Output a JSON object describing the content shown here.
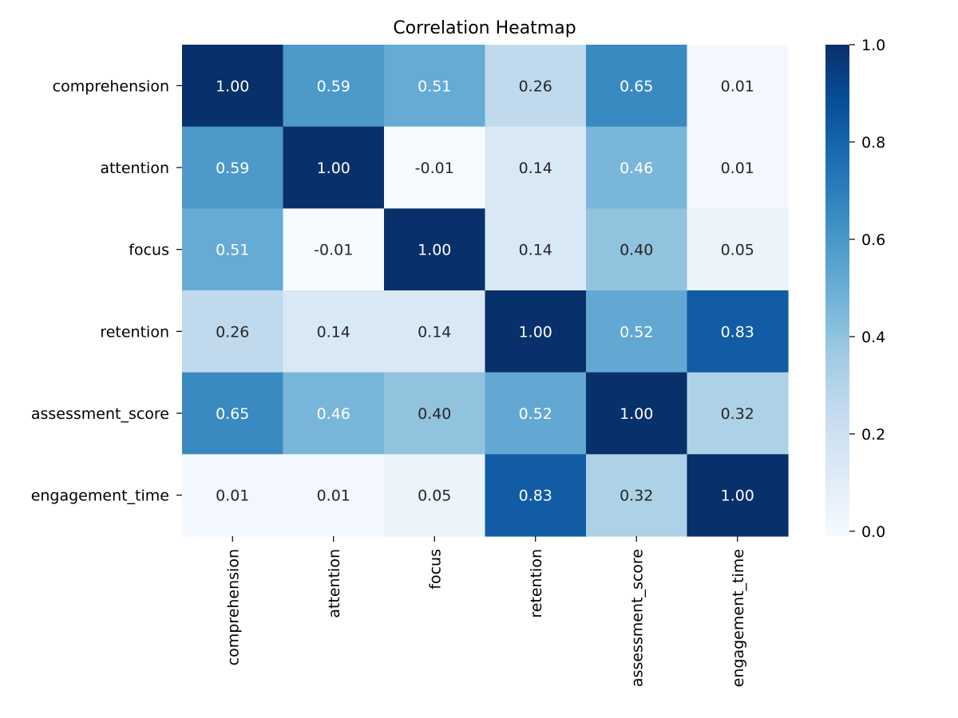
{
  "chart_data": {
    "type": "heatmap",
    "title": "Correlation Heatmap",
    "xlabel": "",
    "ylabel": "",
    "x_categories": [
      "comprehension",
      "attention",
      "focus",
      "retention",
      "assessment_score",
      "engagement_time"
    ],
    "y_categories": [
      "comprehension",
      "attention",
      "focus",
      "retention",
      "assessment_score",
      "engagement_time"
    ],
    "values": [
      [
        1.0,
        0.59,
        0.51,
        0.26,
        0.65,
        0.01
      ],
      [
        0.59,
        1.0,
        -0.01,
        0.14,
        0.46,
        0.01
      ],
      [
        0.51,
        -0.01,
        1.0,
        0.14,
        0.4,
        0.05
      ],
      [
        0.26,
        0.14,
        0.14,
        1.0,
        0.52,
        0.83
      ],
      [
        0.65,
        0.46,
        0.4,
        0.52,
        1.0,
        0.32
      ],
      [
        0.01,
        0.01,
        0.05,
        0.83,
        0.32,
        1.0
      ]
    ],
    "value_format": "0.00",
    "colormap": "Blues",
    "colormap_stops": [
      "#f7fbff",
      "#deebf7",
      "#c6dbef",
      "#9ecae1",
      "#6baed6",
      "#4292c6",
      "#2171b5",
      "#08519c",
      "#08306b"
    ],
    "color_range": [
      -0.01,
      1.0
    ],
    "colorbar": {
      "ticks": [
        "0.0",
        "0.2",
        "0.4",
        "0.6",
        "0.8",
        "1.0"
      ],
      "tick_values": [
        0.0,
        0.2,
        0.4,
        0.6,
        0.8,
        1.0
      ]
    },
    "grid": false,
    "text_colors": {
      "dark": "#262626",
      "light": "#ffffff"
    }
  }
}
